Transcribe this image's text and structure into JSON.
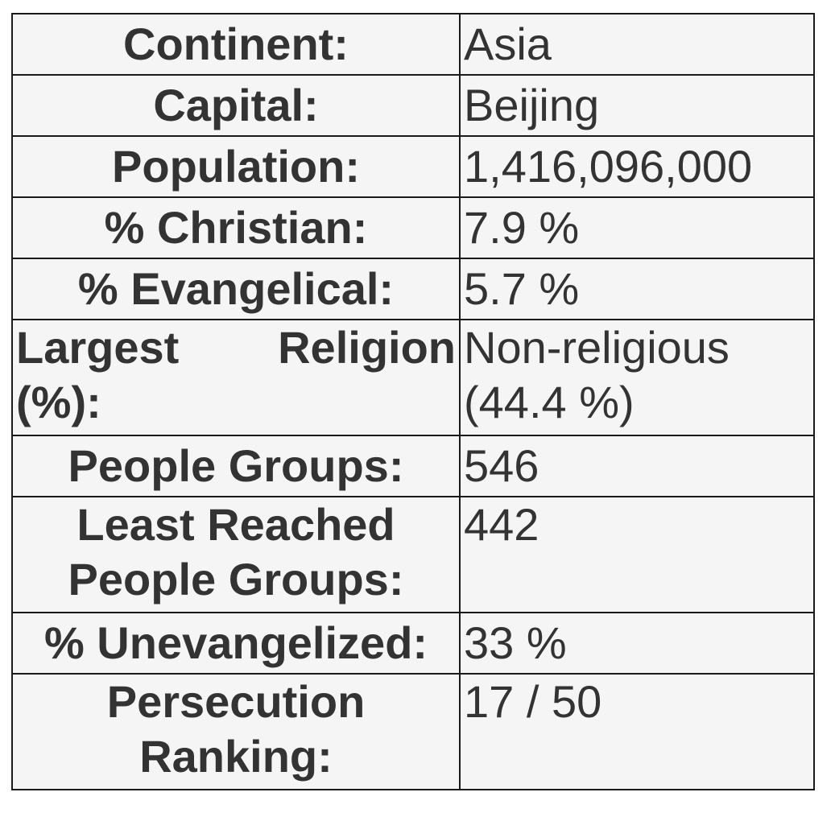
{
  "rows": [
    {
      "label": "Continent:",
      "value": "Asia"
    },
    {
      "label": "Capital:",
      "value": "Beijing"
    },
    {
      "label": "Population:",
      "value": "1,416,096,000"
    },
    {
      "label": "% Christian:",
      "value": "7.9 %"
    },
    {
      "label": "% Evangelical:",
      "value": "5.7 %"
    },
    {
      "label": "Largest Religion (%):",
      "value": "Non-religious (44.4 %)"
    },
    {
      "label": "People Groups:",
      "value": "546"
    },
    {
      "label": "Least Reached People Groups:",
      "value": "442"
    },
    {
      "label": "% Unevangelized:",
      "value": "33 %"
    },
    {
      "label": "Persecution Ranking:",
      "value": "17 / 50"
    }
  ]
}
